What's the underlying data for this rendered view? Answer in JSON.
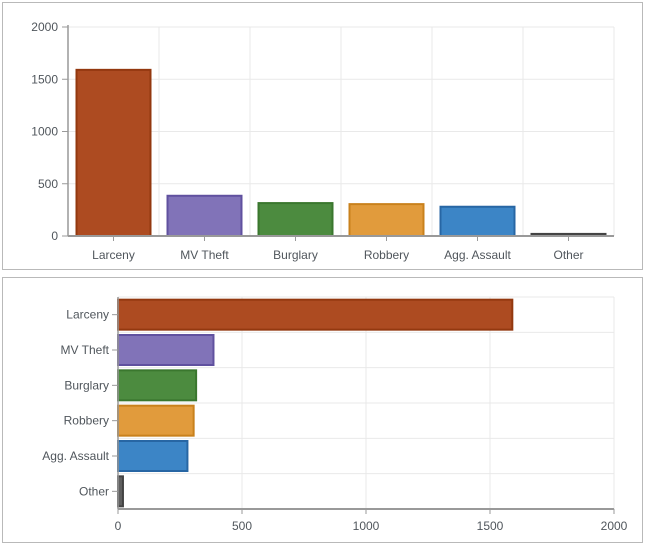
{
  "page": {
    "background": "#ffffff",
    "panel_background": "#ffffff",
    "panel_border_color": "#b9b9b9"
  },
  "chart_style": {
    "gridline_color": "#e9e9e9",
    "axis_color": "#999999",
    "tick_color": "#999999",
    "label_color": "#50565c",
    "label_font_size": 12
  },
  "chart_data": [
    {
      "id": "crime-bar-chart-vertical",
      "type": "bar",
      "orientation": "vertical",
      "categories": [
        "Larceny",
        "MV Theft",
        "Burglary",
        "Robbery",
        "Agg. Assault",
        "Other"
      ],
      "values": [
        1590,
        385,
        315,
        305,
        280,
        20
      ],
      "bar_fill_colors": [
        "#ad4b21",
        "#8173b8",
        "#4c8b3f",
        "#e19b3c",
        "#3c85c6",
        "#5f5f5f"
      ],
      "bar_border_colors": [
        "#93380f",
        "#60519f",
        "#3a772e",
        "#c9811c",
        "#2766a4",
        "#434343"
      ],
      "value_axis": {
        "min": 0,
        "max": 2000,
        "ticks": [
          0,
          500,
          1000,
          1500,
          2000
        ],
        "tick_labels": [
          "0",
          "500",
          "1000",
          "1500",
          "2000"
        ]
      },
      "grid": true,
      "legend": "none"
    },
    {
      "id": "crime-bar-chart-horizontal",
      "type": "bar",
      "orientation": "horizontal",
      "categories": [
        "Larceny",
        "MV Theft",
        "Burglary",
        "Robbery",
        "Agg. Assault",
        "Other"
      ],
      "values": [
        1590,
        385,
        315,
        305,
        280,
        20
      ],
      "bar_fill_colors": [
        "#ad4b21",
        "#8173b8",
        "#4c8b3f",
        "#e19b3c",
        "#3c85c6",
        "#5f5f5f"
      ],
      "bar_border_colors": [
        "#93380f",
        "#60519f",
        "#3a772e",
        "#c9811c",
        "#2766a4",
        "#434343"
      ],
      "value_axis": {
        "min": 0,
        "max": 2000,
        "ticks": [
          0,
          500,
          1000,
          1500,
          2000
        ],
        "tick_labels": [
          "0",
          "500",
          "1000",
          "1500",
          "2000"
        ]
      },
      "grid": true,
      "legend": "none"
    }
  ]
}
